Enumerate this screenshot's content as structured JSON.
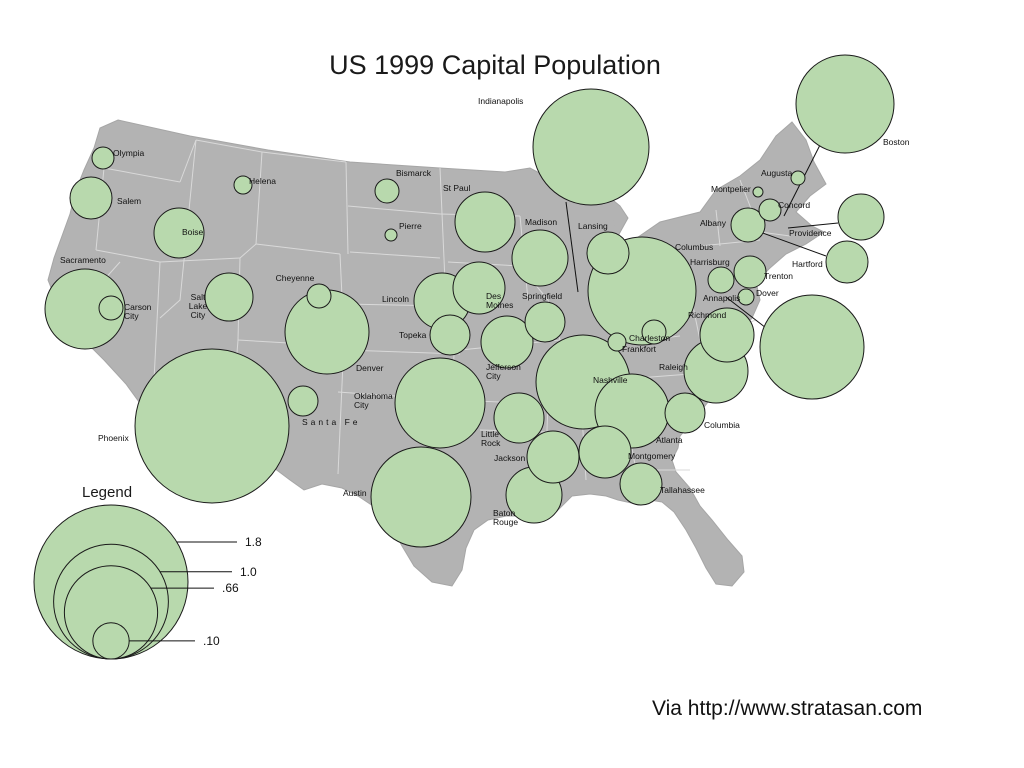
{
  "title": "US 1999 Capital Population",
  "legend": {
    "title": "Legend",
    "entries": [
      {
        "label": "1.8",
        "value": 1.8
      },
      {
        "label": "1.0",
        "value": 1.0
      },
      {
        "label": ".66",
        "value": 0.66
      },
      {
        "label": ".10",
        "value": 0.1
      }
    ]
  },
  "credit": "Via http://www.stratasan.com",
  "colors": {
    "land": "#b3b3b3",
    "border": "#d9d9d9",
    "bubble_fill": "#b8d9ad",
    "bubble_stroke": "#1a1a1a"
  },
  "capitals": [
    {
      "name": "Olympia",
      "label": "Olympia"
    },
    {
      "name": "Salem",
      "label": "Salem"
    },
    {
      "name": "Helena",
      "label": "Helena"
    },
    {
      "name": "Boise",
      "label": "Boise"
    },
    {
      "name": "Sacramento",
      "label": "Sacramento"
    },
    {
      "name": "Carson City",
      "label": "Carson City"
    },
    {
      "name": "Salt Lake City",
      "label": "Salt Lake City"
    },
    {
      "name": "Cheyenne",
      "label": "Cheyenne"
    },
    {
      "name": "Denver",
      "label": "Denver"
    },
    {
      "name": "Phoenix",
      "label": "Phoenix"
    },
    {
      "name": "Santa Fe",
      "label": "Santa Fe"
    },
    {
      "name": "Bismarck",
      "label": "Bismarck"
    },
    {
      "name": "Pierre",
      "label": "Pierre"
    },
    {
      "name": "St Paul",
      "label": "St Paul"
    },
    {
      "name": "Lincoln",
      "label": "Lincoln"
    },
    {
      "name": "Des Moines",
      "label": "Des Moines"
    },
    {
      "name": "Topeka",
      "label": "Topeka"
    },
    {
      "name": "Oklahoma City",
      "label": "Oklahoma City"
    },
    {
      "name": "Austin",
      "label": "Austin"
    },
    {
      "name": "Madison",
      "label": "Madison"
    },
    {
      "name": "Springfield",
      "label": "Springfield"
    },
    {
      "name": "Jefferson City",
      "label": "Jefferson City"
    },
    {
      "name": "Little Rock",
      "label": "Little Rock"
    },
    {
      "name": "Jackson",
      "label": "Jackson"
    },
    {
      "name": "Baton Rouge",
      "label": "Baton Rouge"
    },
    {
      "name": "Indianapolis",
      "label": "Indianapolis"
    },
    {
      "name": "Lansing",
      "label": "Lansing"
    },
    {
      "name": "Columbus",
      "label": "Columbus"
    },
    {
      "name": "Frankfort",
      "label": "Frankfort"
    },
    {
      "name": "Nashville",
      "label": "Nashville"
    },
    {
      "name": "Atlanta",
      "label": "Atlanta"
    },
    {
      "name": "Montgomery",
      "label": "Montgomery"
    },
    {
      "name": "Tallahassee",
      "label": "Tallahassee"
    },
    {
      "name": "Columbia",
      "label": "Columbia"
    },
    {
      "name": "Raleigh",
      "label": "Raleigh"
    },
    {
      "name": "Richmond",
      "label": "Richmond"
    },
    {
      "name": "Charleston",
      "label": "Charleston"
    },
    {
      "name": "Annapolis",
      "label": "Annapolis"
    },
    {
      "name": "Dover",
      "label": "Dover"
    },
    {
      "name": "Harrisburg",
      "label": "Harrisburg"
    },
    {
      "name": "Trenton",
      "label": "Trenton"
    },
    {
      "name": "Albany",
      "label": "Albany"
    },
    {
      "name": "Hartford",
      "label": "Hartford"
    },
    {
      "name": "Providence",
      "label": "Providence"
    },
    {
      "name": "Boston",
      "label": "Boston"
    },
    {
      "name": "Concord",
      "label": "Concord"
    },
    {
      "name": "Montpelier",
      "label": "Montpelier"
    },
    {
      "name": "Augusta",
      "label": "Augusta"
    }
  ]
}
